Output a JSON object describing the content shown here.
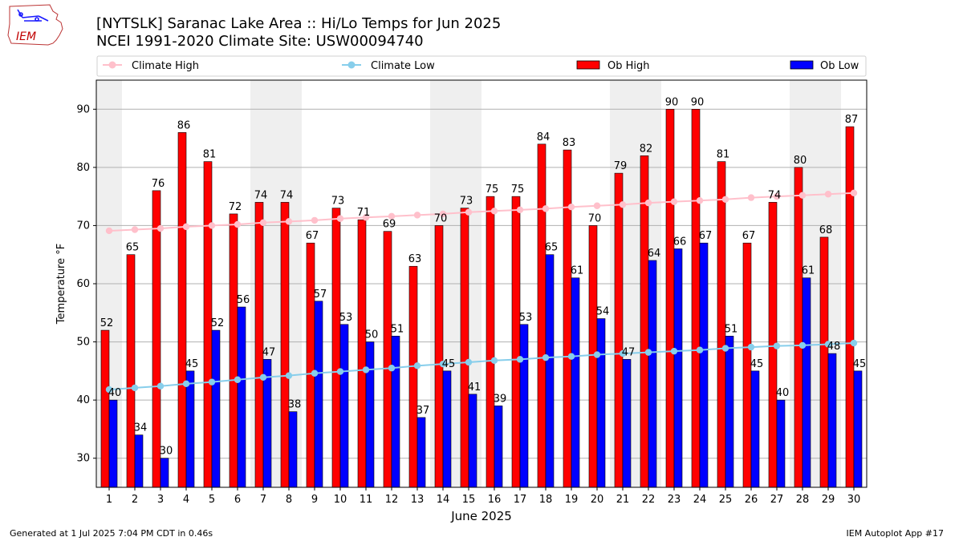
{
  "logo": {
    "text": "IEM"
  },
  "footer": {
    "generated": "Generated at 1 Jul 2025 7:04 PM CDT in 0.46s",
    "app": "IEM Autoplot App #17"
  },
  "chart_data": {
    "type": "bar",
    "title": "[NYTSLK] Saranac Lake Area :: Hi/Lo Temps for Jun 2025",
    "subtitle": "NCEI 1991-2020 Climate Site: USW00094740",
    "xlabel": "June 2025",
    "ylabel": "Temperature °F",
    "ylim": [
      25,
      95
    ],
    "yticks": [
      30,
      40,
      50,
      60,
      70,
      80,
      90
    ],
    "grid": true,
    "legend_position": "top",
    "categories": [
      "1",
      "2",
      "3",
      "4",
      "5",
      "6",
      "7",
      "8",
      "9",
      "10",
      "11",
      "12",
      "13",
      "14",
      "15",
      "16",
      "17",
      "18",
      "19",
      "20",
      "21",
      "22",
      "23",
      "24",
      "25",
      "26",
      "27",
      "28",
      "29",
      "30"
    ],
    "weekend_shaded_days": [
      1,
      7,
      8,
      14,
      15,
      21,
      22,
      28,
      29
    ],
    "series": [
      {
        "name": "Ob High",
        "kind": "bar",
        "color": "#ff0000",
        "values": [
          52,
          65,
          76,
          86,
          81,
          72,
          74,
          74,
          67,
          73,
          71,
          69,
          63,
          70,
          73,
          75,
          75,
          84,
          83,
          70,
          79,
          82,
          90,
          90,
          81,
          67,
          74,
          80,
          68,
          87
        ]
      },
      {
        "name": "Ob Low",
        "kind": "bar",
        "color": "#0000ff",
        "values": [
          40,
          34,
          30,
          45,
          52,
          56,
          47,
          38,
          57,
          53,
          50,
          51,
          37,
          45,
          41,
          39,
          53,
          65,
          61,
          54,
          47,
          64,
          66,
          67,
          51,
          45,
          40,
          61,
          48,
          45
        ]
      },
      {
        "name": "Climate High",
        "kind": "line",
        "color": "#ffc0cb",
        "values": [
          69.1,
          69.3,
          69.5,
          69.8,
          70.0,
          70.2,
          70.5,
          70.7,
          70.9,
          71.2,
          71.4,
          71.6,
          71.8,
          72.0,
          72.3,
          72.5,
          72.7,
          72.9,
          73.2,
          73.4,
          73.6,
          73.9,
          74.1,
          74.3,
          74.5,
          74.8,
          75.0,
          75.2,
          75.4,
          75.6
        ]
      },
      {
        "name": "Climate Low",
        "kind": "line",
        "color": "#87ceeb",
        "values": [
          41.8,
          42.1,
          42.4,
          42.8,
          43.1,
          43.5,
          43.9,
          44.2,
          44.6,
          44.9,
          45.2,
          45.5,
          45.9,
          46.2,
          46.5,
          46.8,
          47.0,
          47.3,
          47.5,
          47.8,
          48.0,
          48.2,
          48.4,
          48.6,
          48.9,
          49.1,
          49.3,
          49.4,
          49.6,
          49.8
        ]
      }
    ],
    "legend_order": [
      "Climate High",
      "Climate Low",
      "Ob High",
      "Ob Low"
    ],
    "colors": {
      "shade": "#efefef",
      "grid": "#b0b0b0"
    }
  }
}
